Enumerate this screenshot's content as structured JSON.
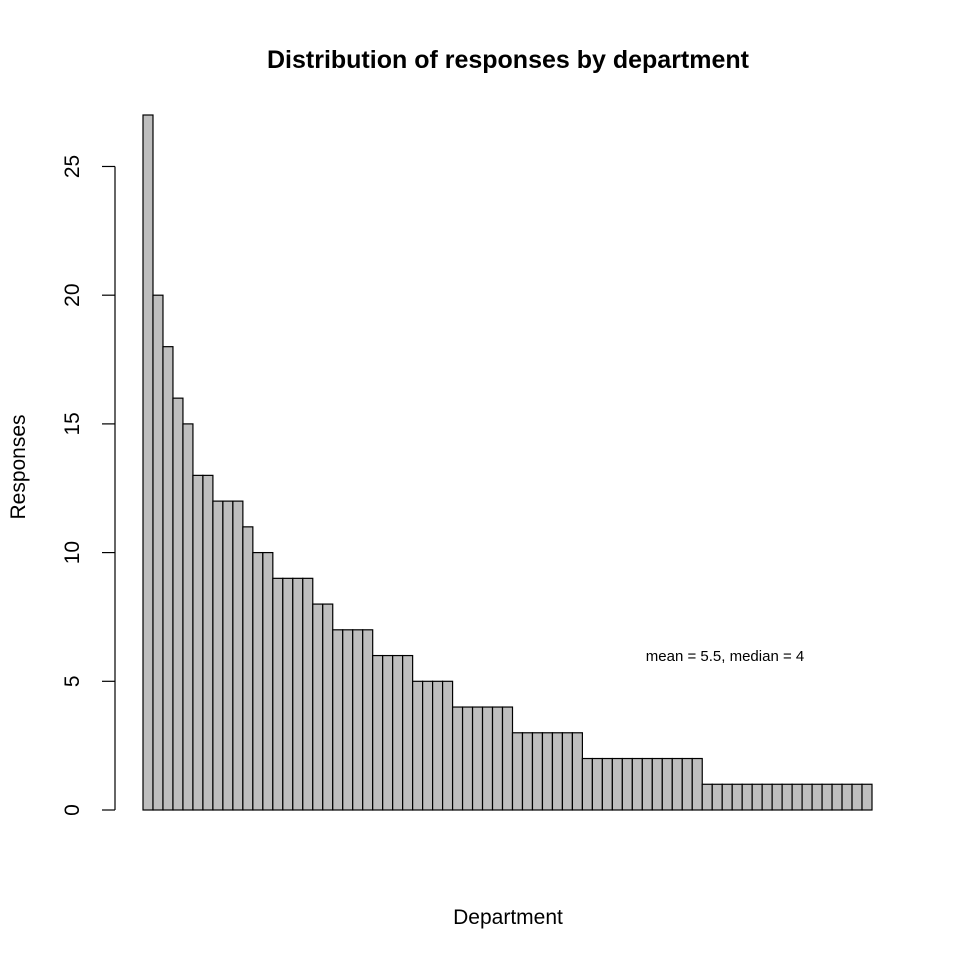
{
  "chart_data": {
    "type": "bar",
    "title": "Distribution of responses by department",
    "xlabel": "Department",
    "ylabel": "Responses",
    "ylim": [
      0,
      27
    ],
    "yticks": [
      0,
      5,
      10,
      15,
      20,
      25
    ],
    "grid": false,
    "bar_fill": "#bebebe",
    "bar_stroke": "#000000",
    "annotation": "mean = 5.5, median = 4",
    "values": [
      27,
      20,
      18,
      16,
      15,
      13,
      13,
      12,
      12,
      12,
      11,
      10,
      10,
      9,
      9,
      9,
      9,
      8,
      8,
      7,
      7,
      7,
      7,
      6,
      6,
      6,
      6,
      5,
      5,
      5,
      5,
      4,
      4,
      4,
      4,
      4,
      4,
      3,
      3,
      3,
      3,
      3,
      3,
      3,
      2,
      2,
      2,
      2,
      2,
      2,
      2,
      2,
      2,
      2,
      2,
      2,
      1,
      1,
      1,
      1,
      1,
      1,
      1,
      1,
      1,
      1,
      1,
      1,
      1,
      1,
      1,
      1,
      1
    ]
  }
}
